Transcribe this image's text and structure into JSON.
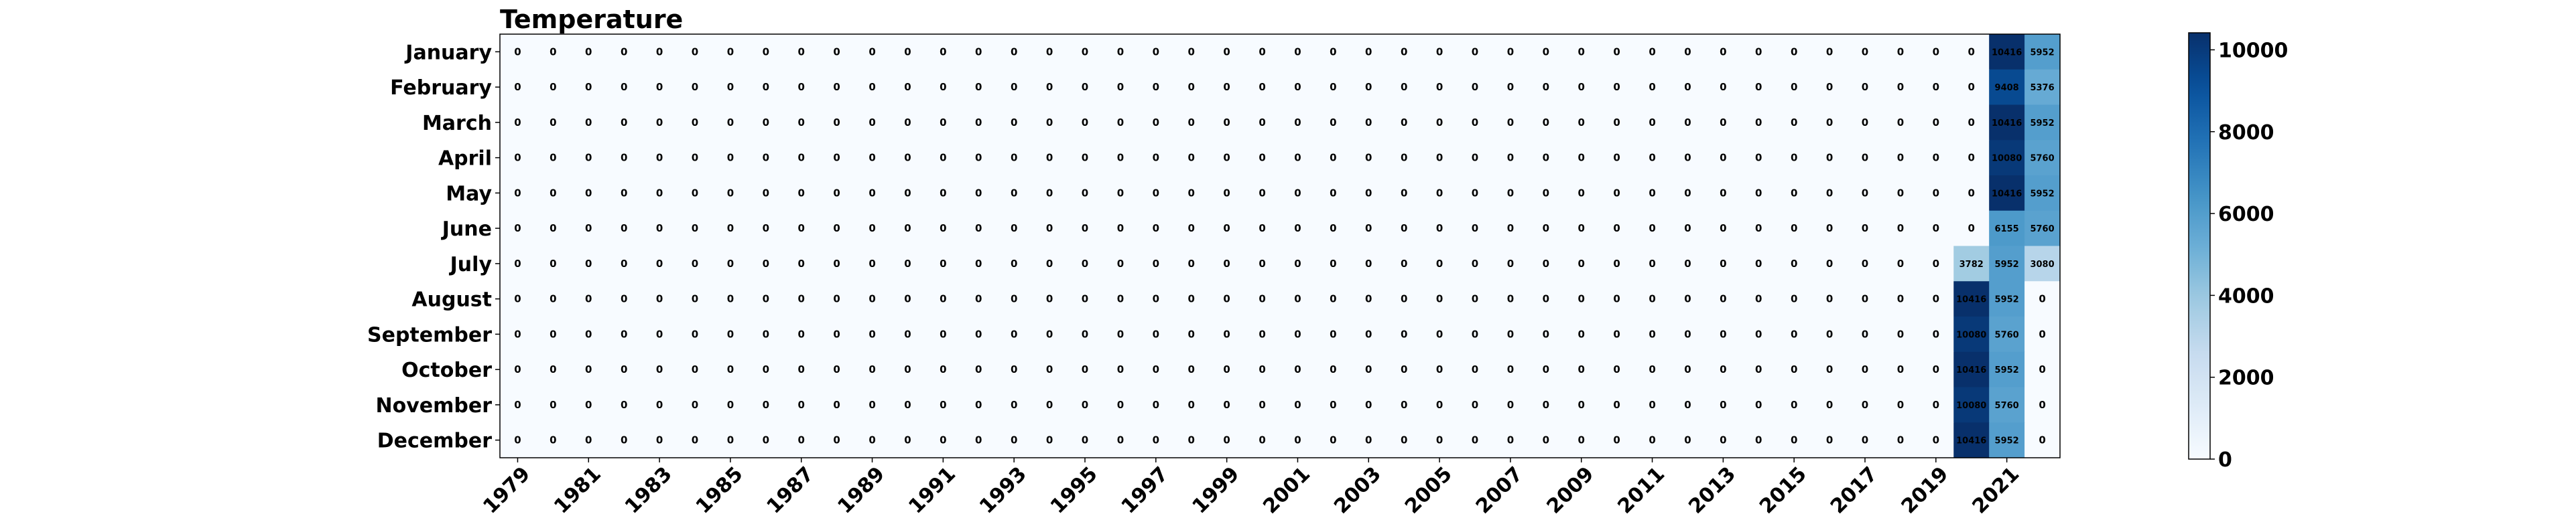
{
  "chart_data": {
    "type": "heatmap",
    "title": "Temperature",
    "xlabel": "",
    "ylabel": "",
    "colormap": "Blues",
    "colors": {
      "low": "#f7fbff",
      "high": "#08306b"
    },
    "x": [
      1979,
      1980,
      1981,
      1982,
      1983,
      1984,
      1985,
      1986,
      1987,
      1988,
      1989,
      1990,
      1991,
      1992,
      1993,
      1994,
      1995,
      1996,
      1997,
      1998,
      1999,
      2000,
      2001,
      2002,
      2003,
      2004,
      2005,
      2006,
      2007,
      2008,
      2009,
      2010,
      2011,
      2012,
      2013,
      2014,
      2015,
      2016,
      2017,
      2018,
      2019,
      2020,
      2021,
      2022
    ],
    "x_tick_labels": [
      "1979",
      "1981",
      "1983",
      "1985",
      "1987",
      "1989",
      "1991",
      "1993",
      "1995",
      "1997",
      "1999",
      "2001",
      "2003",
      "2005",
      "2007",
      "2009",
      "2011",
      "2013",
      "2015",
      "2017",
      "2019",
      "2021"
    ],
    "y": [
      "January",
      "February",
      "March",
      "April",
      "May",
      "June",
      "July",
      "August",
      "September",
      "October",
      "November",
      "December"
    ],
    "nonzero_cells": [
      {
        "month": "January",
        "values": {
          "2021": 10416,
          "2022": 5952
        }
      },
      {
        "month": "February",
        "values": {
          "2021": 9408,
          "2022": 5376
        }
      },
      {
        "month": "March",
        "values": {
          "2021": 10416,
          "2022": 5952
        }
      },
      {
        "month": "April",
        "values": {
          "2021": 10080,
          "2022": 5760
        }
      },
      {
        "month": "May",
        "values": {
          "2021": 10416,
          "2022": 5952
        }
      },
      {
        "month": "June",
        "values": {
          "2021": 6155,
          "2022": 5760
        }
      },
      {
        "month": "July",
        "values": {
          "2020": 3782,
          "2021": 5952,
          "2022": 3080
        }
      },
      {
        "month": "August",
        "values": {
          "2020": 10416,
          "2021": 5952
        }
      },
      {
        "month": "September",
        "values": {
          "2020": 10080,
          "2021": 5760
        }
      },
      {
        "month": "October",
        "values": {
          "2020": 10416,
          "2021": 5952
        }
      },
      {
        "month": "November",
        "values": {
          "2020": 10080,
          "2021": 5760
        }
      },
      {
        "month": "December",
        "values": {
          "2020": 10416,
          "2021": 5952
        }
      }
    ],
    "default_value": 0,
    "vmin": 0,
    "vmax": 10416,
    "colorbar_ticks": [
      0,
      2000,
      4000,
      6000,
      8000,
      10000
    ],
    "grid": false
  }
}
